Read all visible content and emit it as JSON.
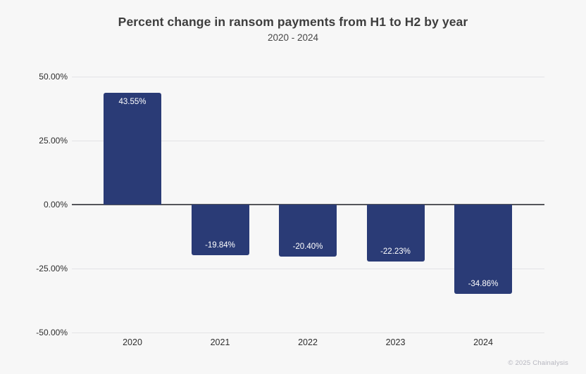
{
  "chart_data": {
    "type": "bar",
    "title": "Percent change in ransom payments from H1 to H2 by year",
    "subtitle": "2020 - 2024",
    "categories": [
      "2020",
      "2021",
      "2022",
      "2023",
      "2024"
    ],
    "values": [
      43.55,
      -19.84,
      -20.4,
      -22.23,
      -34.86
    ],
    "value_labels": [
      "43.55%",
      "-19.84%",
      "-20.40%",
      "-22.23%",
      "-34.86%"
    ],
    "xlabel": "",
    "ylabel": "",
    "ylim": [
      -50,
      50
    ],
    "yticks": [
      50,
      25,
      0,
      -25,
      -50
    ],
    "ytick_labels": [
      "50.00%",
      "25.00%",
      "0.00%",
      "-25.00%",
      "-50.00%"
    ],
    "grid": true,
    "legend": "none",
    "bar_color": "#2a3b76",
    "bar_label_color": "#ffffff",
    "background_color": "#f7f7f7"
  },
  "footer": {
    "copyright": "© 2025 Chainalysis"
  }
}
